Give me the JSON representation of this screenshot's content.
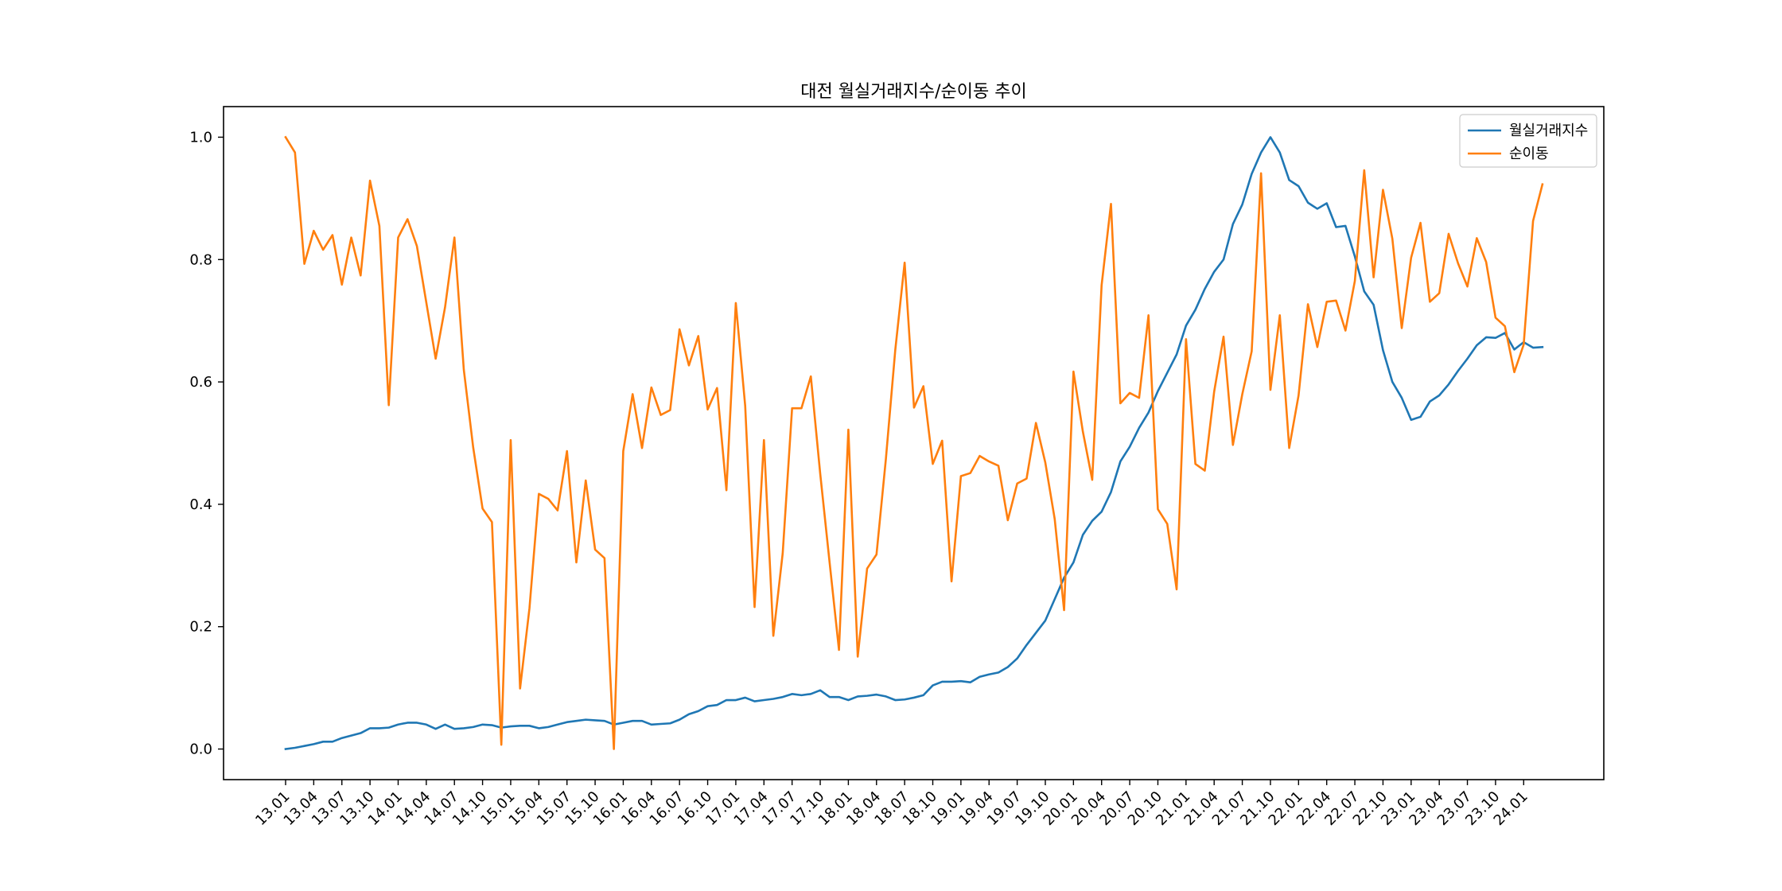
{
  "chart_data": {
    "type": "line",
    "title": "대전 월실거래지수/순이동 추이",
    "xlabel": "",
    "ylabel": "",
    "ylim": [
      -0.05,
      1.05
    ],
    "yticks": [
      "0.0",
      "0.2",
      "0.4",
      "0.6",
      "0.8",
      "1.0"
    ],
    "x_tick_labels": [
      "13.01",
      "13.04",
      "13.07",
      "13.10",
      "14.01",
      "14.04",
      "14.07",
      "14.10",
      "15.01",
      "15.04",
      "15.07",
      "15.10",
      "16.01",
      "16.04",
      "16.07",
      "16.10",
      "17.01",
      "17.04",
      "17.07",
      "17.10",
      "18.01",
      "18.04",
      "18.07",
      "18.10",
      "19.01",
      "19.04",
      "19.07",
      "19.10",
      "20.01",
      "20.04",
      "20.07",
      "20.10",
      "21.01",
      "21.04",
      "21.07",
      "21.10",
      "22.01",
      "22.04",
      "22.07",
      "22.10",
      "23.01",
      "23.04",
      "23.07",
      "23.10",
      "24.01"
    ],
    "months_start": "13.01",
    "grid": false,
    "legend_position": "upper right",
    "series": [
      {
        "name": "월실거래지수",
        "color": "#1f77b4",
        "values": [
          0.0,
          0.002,
          0.005,
          0.008,
          0.012,
          0.012,
          0.018,
          0.022,
          0.026,
          0.034,
          0.034,
          0.035,
          0.04,
          0.043,
          0.043,
          0.04,
          0.033,
          0.04,
          0.033,
          0.034,
          0.036,
          0.04,
          0.039,
          0.035,
          0.037,
          0.038,
          0.038,
          0.034,
          0.036,
          0.04,
          0.044,
          0.046,
          0.048,
          0.047,
          0.046,
          0.04,
          0.043,
          0.046,
          0.046,
          0.04,
          0.041,
          0.042,
          0.048,
          0.057,
          0.062,
          0.07,
          0.072,
          0.08,
          0.08,
          0.084,
          0.078,
          0.08,
          0.082,
          0.085,
          0.09,
          0.088,
          0.09,
          0.096,
          0.085,
          0.085,
          0.08,
          0.086,
          0.087,
          0.089,
          0.086,
          0.08,
          0.081,
          0.084,
          0.088,
          0.104,
          0.11,
          0.11,
          0.111,
          0.109,
          0.118,
          0.122,
          0.125,
          0.134,
          0.148,
          0.17,
          0.19,
          0.21,
          0.245,
          0.28,
          0.305,
          0.35,
          0.373,
          0.388,
          0.42,
          0.47,
          0.494,
          0.525,
          0.55,
          0.585,
          0.615,
          0.645,
          0.692,
          0.718,
          0.752,
          0.78,
          0.8,
          0.858,
          0.89,
          0.94,
          0.975,
          1.0,
          0.975,
          0.93,
          0.92,
          0.893,
          0.883,
          0.892,
          0.853,
          0.855,
          0.805,
          0.748,
          0.726,
          0.652,
          0.6,
          0.574,
          0.538,
          0.543,
          0.568,
          0.578,
          0.596,
          0.618,
          0.638,
          0.66,
          0.673,
          0.672,
          0.68,
          0.653,
          0.665,
          0.656,
          0.657
        ]
      },
      {
        "name": "순이동",
        "color": "#ff7f0e",
        "values": [
          1.0,
          0.975,
          0.793,
          0.847,
          0.816,
          0.84,
          0.759,
          0.836,
          0.774,
          0.929,
          0.855,
          0.562,
          0.836,
          0.866,
          0.822,
          0.73,
          0.638,
          0.722,
          0.836,
          0.62,
          0.493,
          0.393,
          0.371,
          0.007,
          0.505,
          0.099,
          0.23,
          0.417,
          0.409,
          0.39,
          0.487,
          0.305,
          0.439,
          0.326,
          0.312,
          0.0,
          0.487,
          0.58,
          0.492,
          0.591,
          0.546,
          0.554,
          0.686,
          0.627,
          0.675,
          0.555,
          0.59,
          0.423,
          0.729,
          0.561,
          0.232,
          0.505,
          0.185,
          0.32,
          0.557,
          0.557,
          0.609,
          0.45,
          0.305,
          0.162,
          0.522,
          0.151,
          0.295,
          0.318,
          0.474,
          0.652,
          0.795,
          0.558,
          0.593,
          0.466,
          0.504,
          0.274,
          0.446,
          0.451,
          0.479,
          0.47,
          0.463,
          0.374,
          0.434,
          0.442,
          0.533,
          0.468,
          0.376,
          0.227,
          0.617,
          0.519,
          0.44,
          0.758,
          0.891,
          0.565,
          0.582,
          0.574,
          0.709,
          0.392,
          0.368,
          0.261,
          0.67,
          0.466,
          0.455,
          0.584,
          0.674,
          0.497,
          0.58,
          0.65,
          0.941,
          0.587,
          0.709,
          0.492,
          0.578,
          0.727,
          0.657,
          0.731,
          0.733,
          0.684,
          0.765,
          0.946,
          0.771,
          0.914,
          0.834,
          0.688,
          0.803,
          0.86,
          0.731,
          0.745,
          0.842,
          0.794,
          0.756,
          0.835,
          0.796,
          0.705,
          0.691,
          0.616,
          0.661,
          0.863,
          0.923
        ]
      }
    ]
  }
}
